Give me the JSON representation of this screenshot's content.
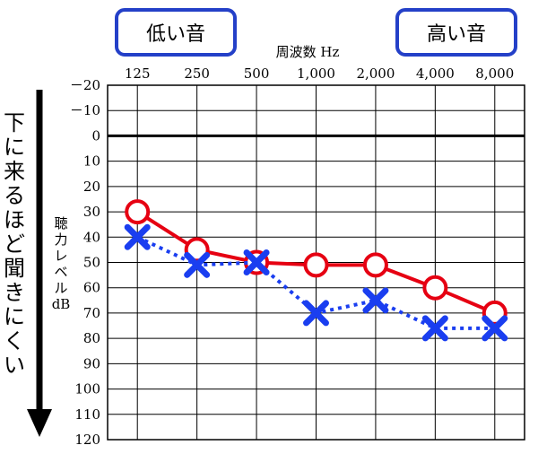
{
  "labels": {
    "low": "低い音",
    "high": "高い音",
    "x_title": "周波数 Hz",
    "y_title_lines": [
      "聴",
      "力",
      "レ",
      "ベ",
      "ル",
      "dB"
    ],
    "side_text": "下に来るほど聞きにくい"
  },
  "colors": {
    "box_border": "#2440c8",
    "right": "#e60012",
    "left": "#1a3ef0",
    "grid": "#000000",
    "arrow": "#000000"
  },
  "chart_data": {
    "type": "line",
    "title": "",
    "xlabel": "周波数 Hz",
    "ylabel": "聴力レベル dB",
    "categories": [
      "125",
      "250",
      "500",
      "1,000",
      "2,000",
      "4,000",
      "8,000"
    ],
    "y_ticks": [
      "－20",
      "－10",
      "0",
      "10",
      "20",
      "30",
      "40",
      "50",
      "60",
      "70",
      "80",
      "90",
      "100",
      "110",
      "120"
    ],
    "ylim": [
      -20,
      120
    ],
    "y_inverted": true,
    "grid": true,
    "series": [
      {
        "marker": "circle",
        "line": "solid",
        "color": "#e60012",
        "values": [
          30,
          45,
          50,
          51,
          51,
          60,
          70
        ]
      },
      {
        "marker": "x",
        "line": "dotted",
        "color": "#1a3ef0",
        "values": [
          40,
          51,
          50,
          70,
          65,
          76,
          76
        ]
      }
    ]
  }
}
